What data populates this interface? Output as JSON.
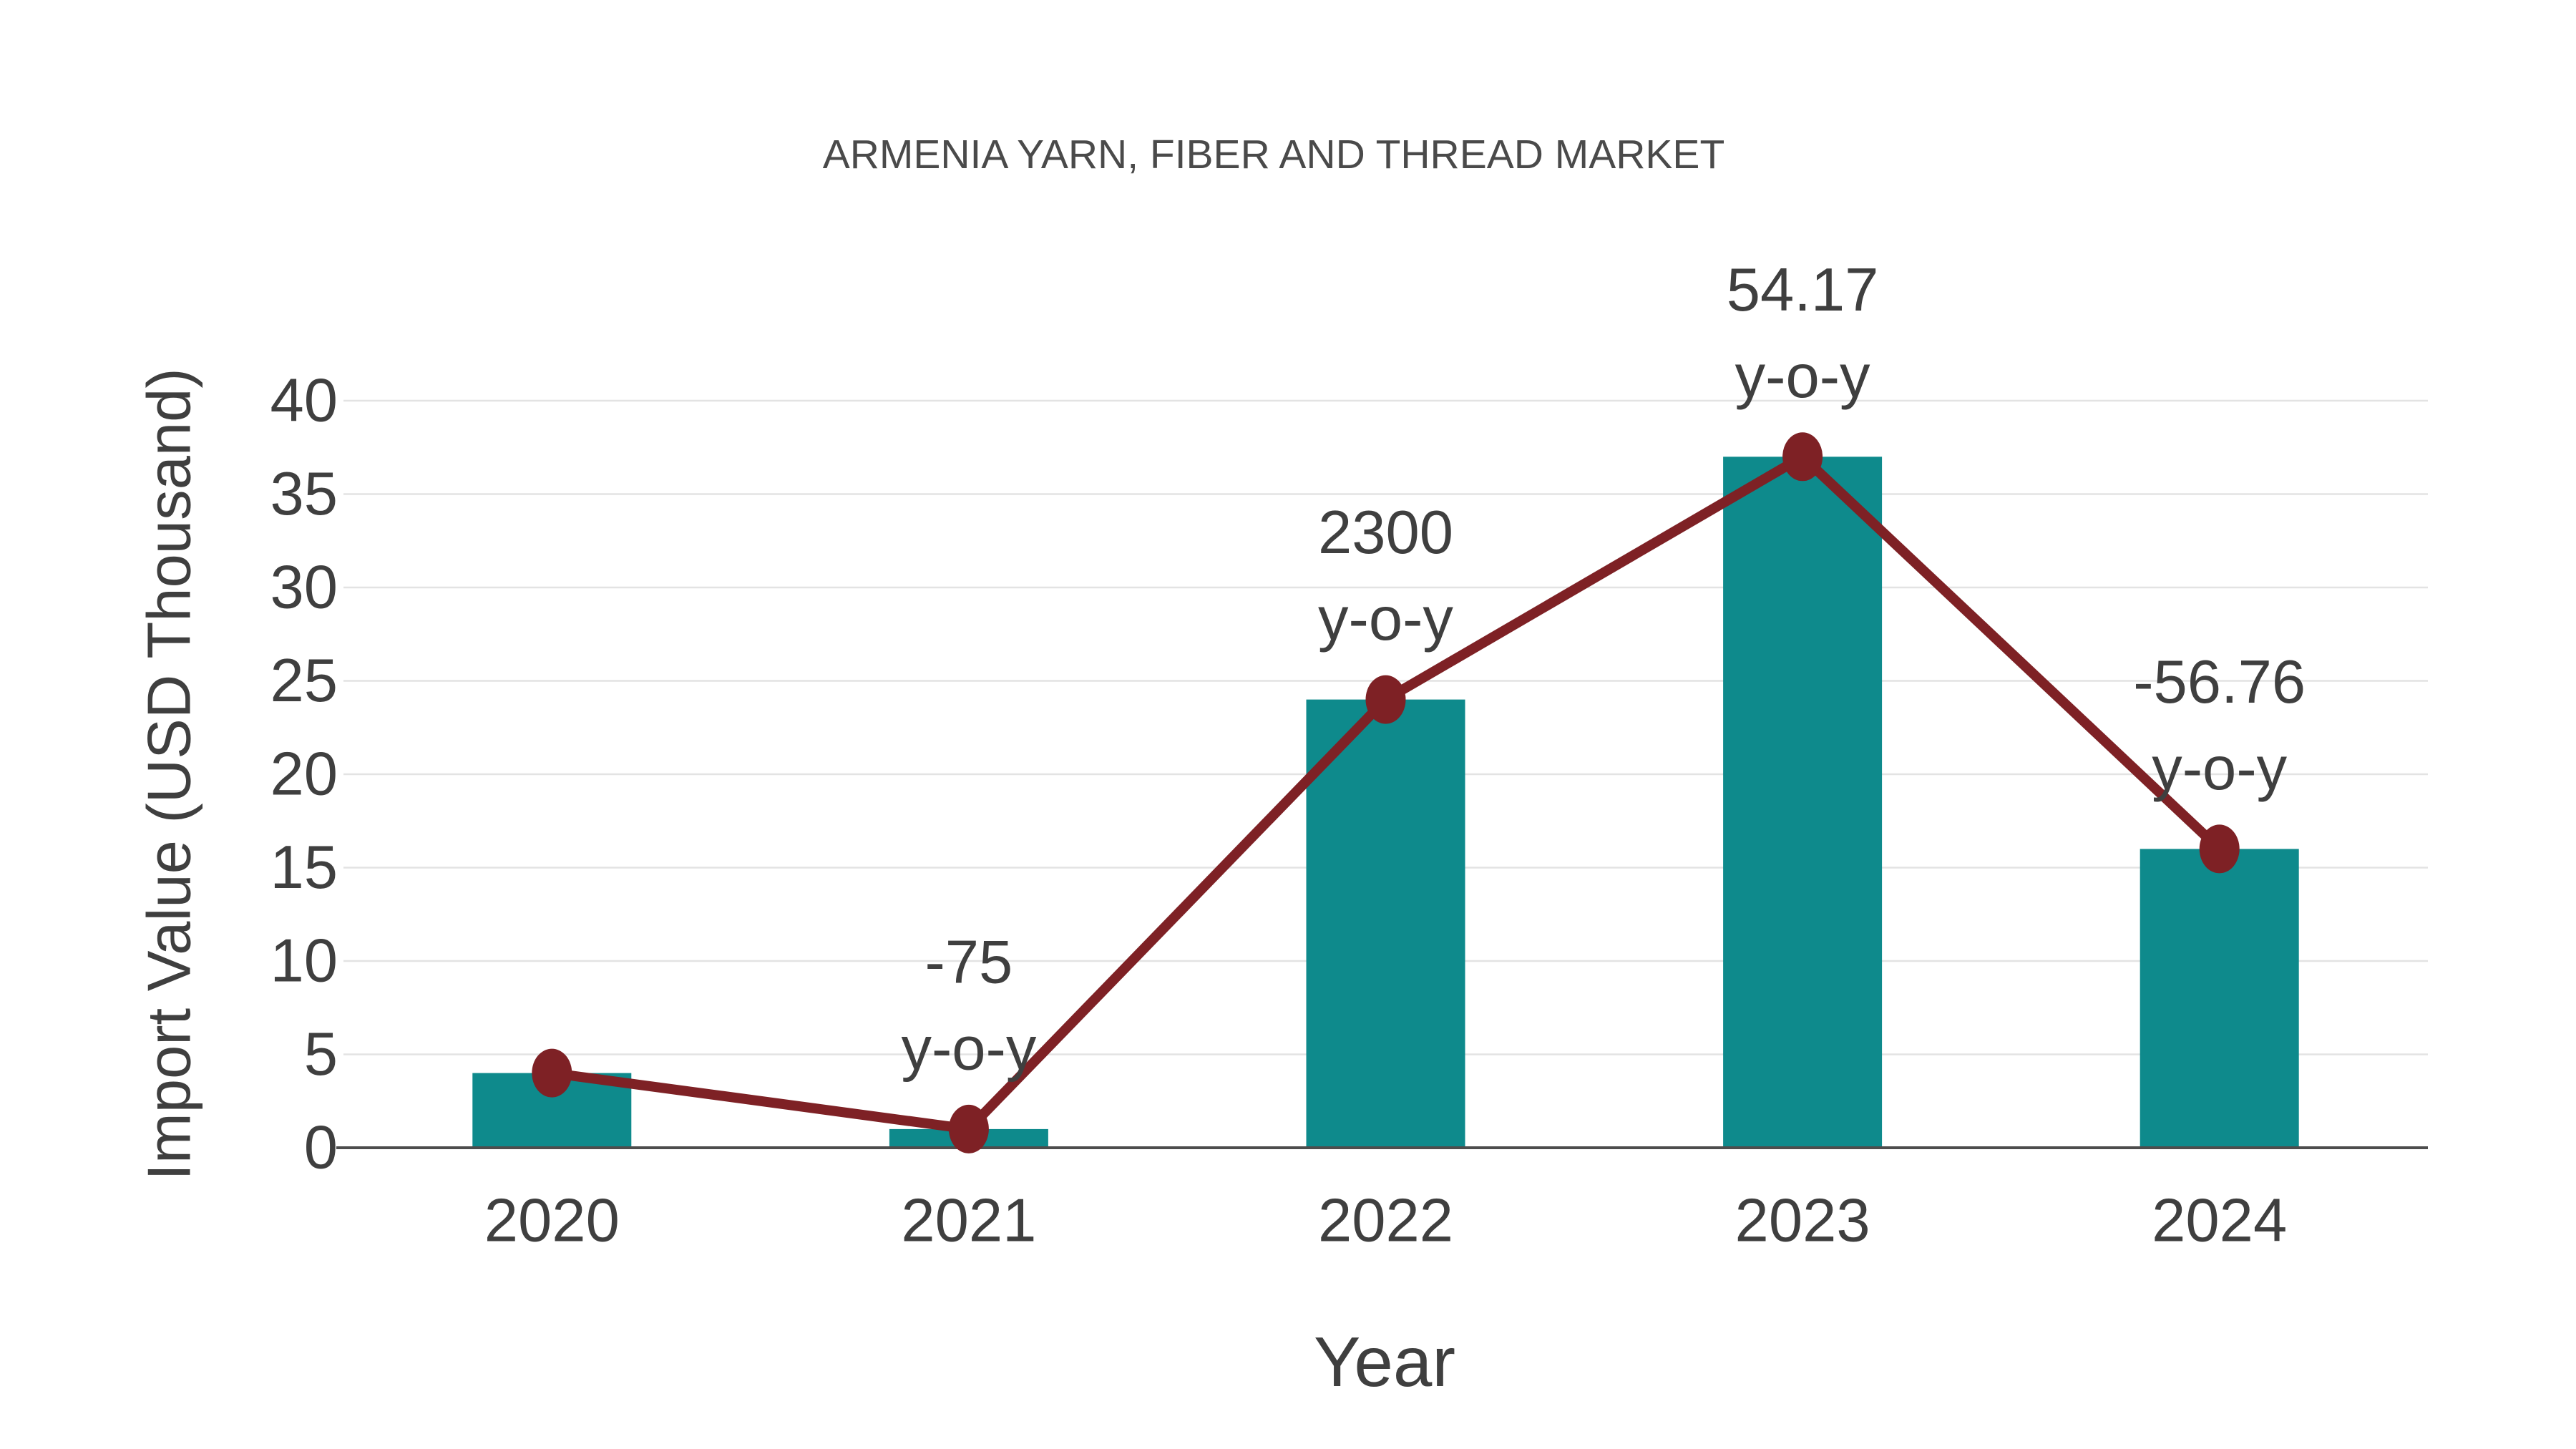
{
  "chart_data": {
    "type": "bar",
    "title": "ARMENIA YARN, FIBER AND THREAD MARKET",
    "xlabel": "Year",
    "ylabel": "Import Value (USD Thousand)",
    "categories": [
      "2020",
      "2021",
      "2022",
      "2023",
      "2024"
    ],
    "series": [
      {
        "name": "import-value-bars",
        "type": "bar",
        "values": [
          4,
          1,
          24,
          37,
          16
        ],
        "color": "#0E8A8C"
      },
      {
        "name": "import-value-line",
        "type": "line",
        "values": [
          4,
          1,
          24,
          37,
          16
        ],
        "color": "#7E2125"
      }
    ],
    "annotations": [
      {
        "category": "2021",
        "line1": "-75",
        "line2": "y-o-y"
      },
      {
        "category": "2022",
        "line1": "2300",
        "line2": "y-o-y"
      },
      {
        "category": "2023",
        "line1": "54.17",
        "line2": "y-o-y"
      },
      {
        "category": "2024",
        "line1": "-56.76",
        "line2": "y-o-y"
      }
    ],
    "yticks": [
      0,
      5,
      10,
      15,
      20,
      25,
      30,
      35,
      40
    ],
    "ylim": [
      0,
      40
    ],
    "grid": true,
    "legend_position": "none",
    "colors": {
      "bar": "#0E8A8C",
      "line": "#7E2125",
      "marker": "#7E2125",
      "gridline": "#E3E3E3",
      "axis_line": "#4D4D4D",
      "tick_text": "#3F3F3F",
      "annotation_text": "#3F3F3F",
      "title_text": "#4A4A4A",
      "background": "#FFFFFF"
    }
  }
}
